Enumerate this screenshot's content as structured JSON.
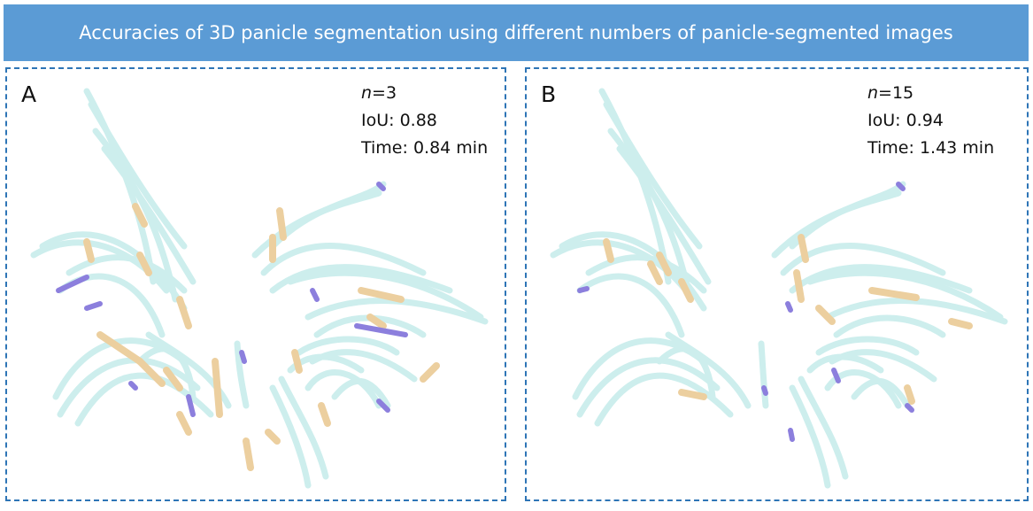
{
  "title": "Accuracies of 3D panicle segmentation using different numbers of panicle-segmented images",
  "colors": {
    "banner": "#5b9bd5",
    "border": "#2e75b6",
    "correct": "#cdeeed",
    "missed": "#eccf9f",
    "false_positive": "#8c7fdd"
  },
  "panels": [
    {
      "letter": "A",
      "n_label": "n",
      "n_value": "=3",
      "iou": "IoU: 0.88",
      "time": "Time: 0.84 min"
    },
    {
      "letter": "B",
      "n_label": "n",
      "n_value": "=15",
      "iou": "IoU: 0.94",
      "time": "Time: 1.43 min"
    }
  ]
}
